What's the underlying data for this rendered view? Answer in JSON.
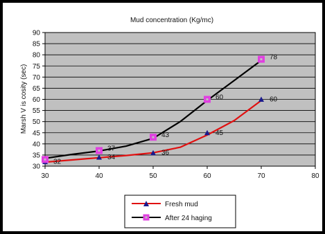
{
  "chart_data": {
    "type": "line",
    "title": "Mud concentration  (Kg/mc)",
    "xlabel": "",
    "ylabel": "Marsh V is cosity (sec)",
    "xlim": [
      30,
      80
    ],
    "ylim": [
      30,
      90
    ],
    "xticks": [
      "30",
      "40",
      "50",
      "60",
      "70",
      "80"
    ],
    "yticks": [
      "30",
      "35",
      "40",
      "45",
      "50",
      "55",
      "60",
      "65",
      "70",
      "75",
      "80",
      "85",
      "90"
    ],
    "grid": true,
    "legend_position": "bottom-left",
    "series": [
      {
        "name": "Fresh mud",
        "color": "#e01010",
        "marker": "triangle",
        "marker_color": "#1a1a8c",
        "x": [
          30,
          40,
          50,
          60,
          70
        ],
        "values": [
          32,
          34,
          36,
          45,
          60
        ],
        "labels": [
          "32",
          "34",
          "36",
          "45",
          "60"
        ],
        "curve": [
          [
            30,
            31.8
          ],
          [
            35,
            32.8
          ],
          [
            40,
            33.8
          ],
          [
            45,
            34.8
          ],
          [
            50,
            36
          ],
          [
            55,
            38.5
          ],
          [
            60,
            44
          ],
          [
            65,
            50.5
          ],
          [
            70,
            59.5
          ]
        ]
      },
      {
        "name": "After 24  haging",
        "color": "#000000",
        "marker": "square",
        "marker_color": "#e040e0",
        "x": [
          30,
          40,
          50,
          60,
          70
        ],
        "values": [
          33,
          37,
          43,
          60,
          78
        ],
        "labels": [
          "",
          "37",
          "43",
          "60",
          "78"
        ],
        "curve": [
          [
            30,
            33.5
          ],
          [
            35,
            35.3
          ],
          [
            40,
            36.8
          ],
          [
            45,
            39
          ],
          [
            50,
            42.5
          ],
          [
            55,
            50
          ],
          [
            60,
            59.5
          ],
          [
            65,
            68.5
          ],
          [
            70,
            77.5
          ]
        ]
      }
    ]
  }
}
